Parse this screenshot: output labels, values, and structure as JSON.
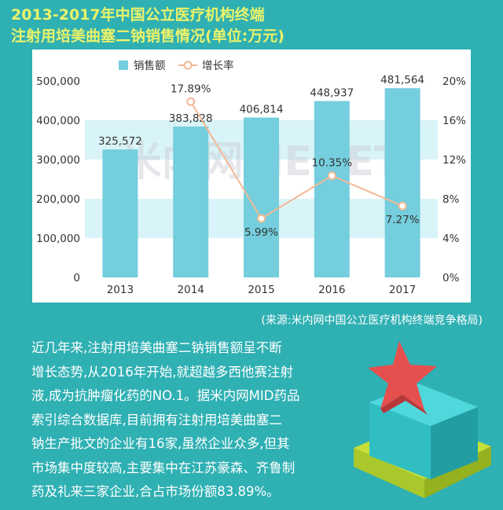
{
  "header": {
    "title_line1": "2013-2017年中国公立医疗机构终端",
    "title_line2": "注射用培美曲塞二钠销售情况(单位:万元)"
  },
  "chart_data": {
    "type": "bar",
    "categories": [
      "2013",
      "2014",
      "2015",
      "2016",
      "2017"
    ],
    "series": [
      {
        "name": "销售额",
        "type": "bar",
        "axis": "left",
        "color": "#74cedd",
        "values": [
          325572,
          383828,
          406814,
          448937,
          481564
        ],
        "labels": [
          "325,572",
          "383,828",
          "406,814",
          "448,937",
          "481,564"
        ]
      },
      {
        "name": "增长率",
        "type": "line",
        "axis": "right",
        "color": "#f3b894",
        "values": [
          null,
          17.89,
          5.99,
          10.35,
          7.27
        ],
        "labels": [
          "",
          "17.89%",
          "5.99%",
          "10.35%",
          "7.27%"
        ]
      }
    ],
    "y_left": {
      "ylim": [
        0,
        500000
      ],
      "ticks": [
        "0",
        "100,000",
        "200,000",
        "300,000",
        "400,000",
        "500,000"
      ]
    },
    "y_right": {
      "ylim": [
        0,
        20
      ],
      "ticks": [
        "0%",
        "4%",
        "8%",
        "12%",
        "16%",
        "20%"
      ]
    },
    "band_color": "#d9f4f8",
    "legend_position": "top-left",
    "watermark": "米内网MENET"
  },
  "source": "(来源:米内网中国公立医疗机构终端竞争格局)",
  "body": {
    "lines": [
      "近几年来,注射用培美曲塞二钠销售额呈不断",
      "增长态势,从2016年开始,就超越多西他赛注射",
      "液,成为抗肿瘤化药的NO.1。据米内网MID药品",
      "索引综合数据库,目前拥有注射用培美曲塞二",
      "钠生产批文的企业有16家,虽然企业众多,但其",
      "市场集中度较高,主要集中在江苏豪森、齐鲁制",
      "药及礼来三家企业,合占市场份额83.89%。"
    ]
  },
  "decoration": {
    "icon": "podium-star-icon",
    "colors": {
      "star": "#e5504f",
      "cube_top": "#3fd2d6",
      "cube_side": "#28a9ad",
      "base": "#c6df39"
    }
  }
}
